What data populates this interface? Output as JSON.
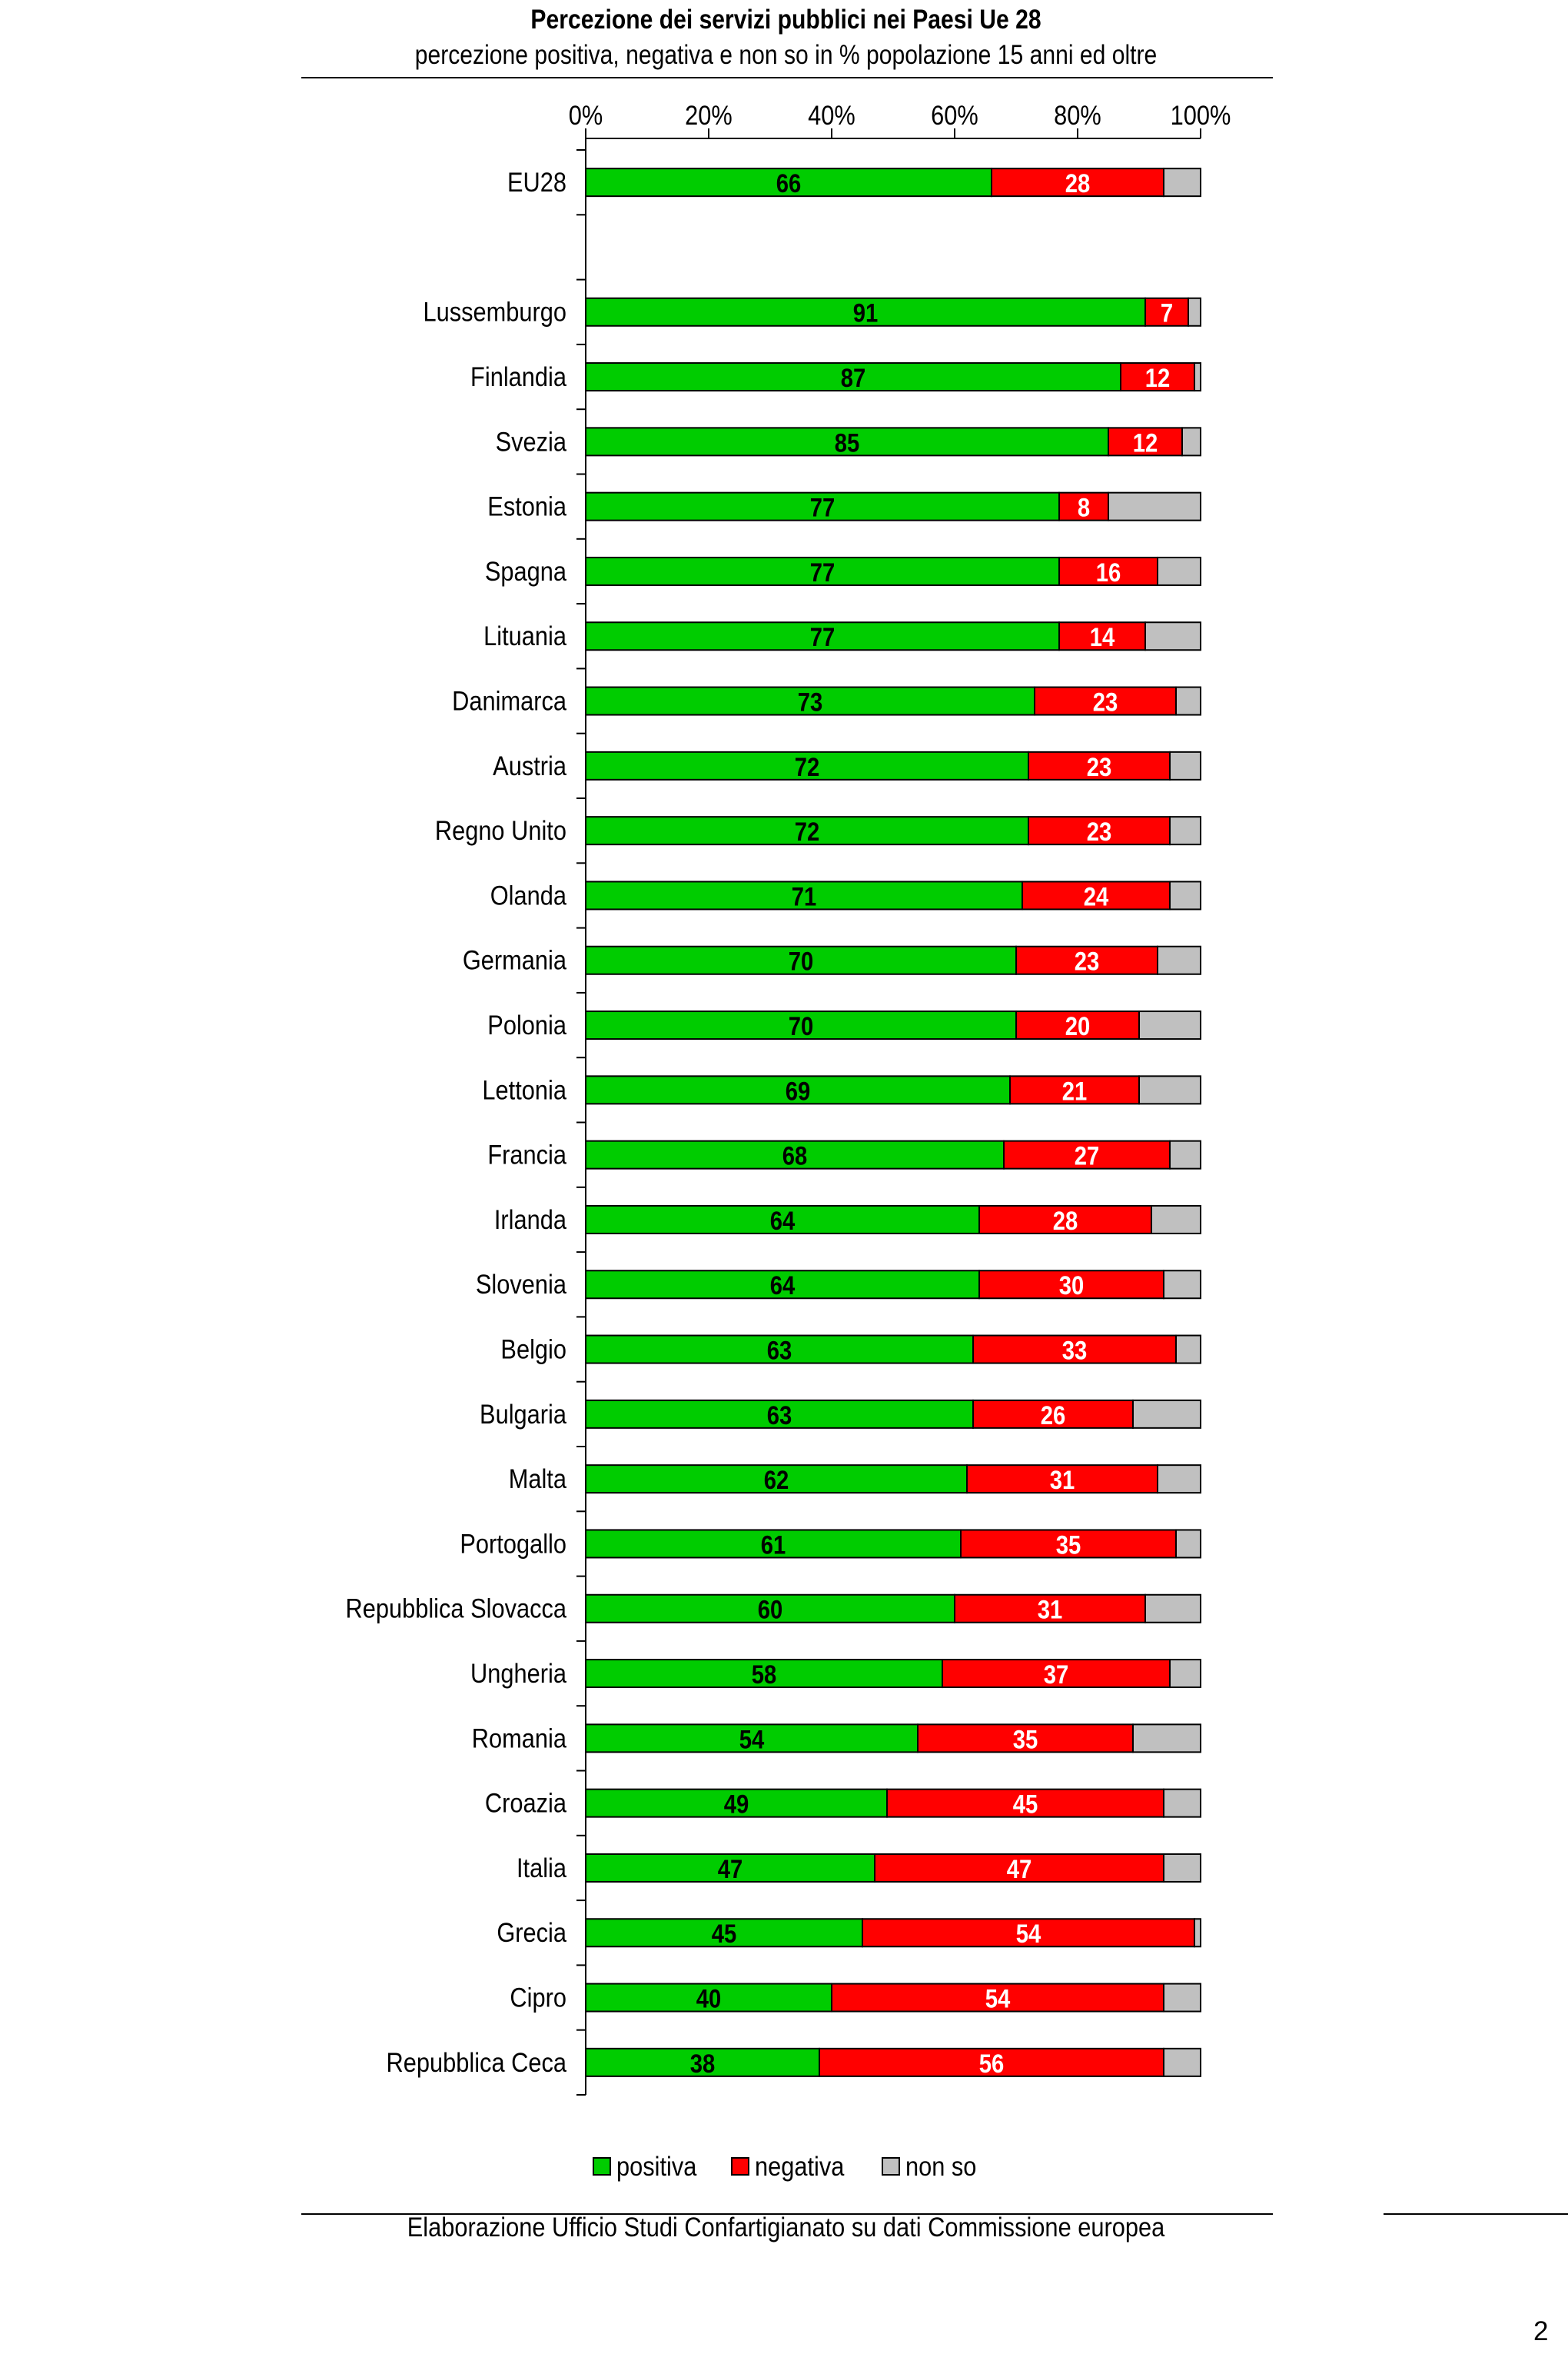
{
  "chart_data": {
    "type": "bar",
    "orientation": "horizontal",
    "stacked": true,
    "title": "Percezione dei servizi pubblici nei Paesi Ue 28",
    "subtitle": "percezione positiva, negativa e non so in % popolazione 15 anni ed oltre",
    "x_ticks": [
      "0%",
      "20%",
      "40%",
      "60%",
      "80%",
      "100%"
    ],
    "xlim": [
      0,
      100
    ],
    "grid": false,
    "legend_position": "bottom",
    "categories": [
      "EU28",
      "",
      "Lussemburgo",
      "Finlandia",
      "Svezia",
      "Estonia",
      "Spagna",
      "Lituania",
      "Danimarca",
      "Austria",
      "Regno Unito",
      "Olanda",
      "Germania",
      "Polonia",
      "Lettonia",
      "Francia",
      "Irlanda",
      "Slovenia",
      "Belgio",
      "Bulgaria",
      "Malta",
      "Portogallo",
      "Repubblica Slovacca",
      "Ungheria",
      "Romania",
      "Croazia",
      "Italia",
      "Grecia",
      "Cipro",
      "Repubblica Ceca"
    ],
    "series": [
      {
        "name": "positiva",
        "color": "#00cc00",
        "label_color": "#000000",
        "values": [
          66,
          null,
          91,
          87,
          85,
          77,
          77,
          77,
          73,
          72,
          72,
          71,
          70,
          70,
          69,
          68,
          64,
          64,
          63,
          63,
          62,
          61,
          60,
          58,
          54,
          49,
          47,
          45,
          40,
          38
        ]
      },
      {
        "name": "negativa",
        "color": "#ff0000",
        "label_color": "#ffffff",
        "values": [
          28,
          null,
          7,
          12,
          12,
          8,
          16,
          14,
          23,
          23,
          23,
          24,
          23,
          20,
          21,
          27,
          28,
          30,
          33,
          26,
          31,
          35,
          31,
          37,
          35,
          45,
          47,
          54,
          54,
          56
        ]
      },
      {
        "name": "non so",
        "color": "#c0c0c0",
        "label_color": null,
        "values": [
          6,
          null,
          2,
          1,
          3,
          15,
          7,
          9,
          4,
          5,
          5,
          5,
          7,
          10,
          10,
          5,
          8,
          6,
          4,
          11,
          7,
          4,
          9,
          5,
          11,
          6,
          6,
          1,
          6,
          6
        ]
      }
    ]
  },
  "footer": {
    "source": "Elaborazione Ufficio Studi Confartigianato su dati Commissione europea",
    "page_number": "2"
  }
}
